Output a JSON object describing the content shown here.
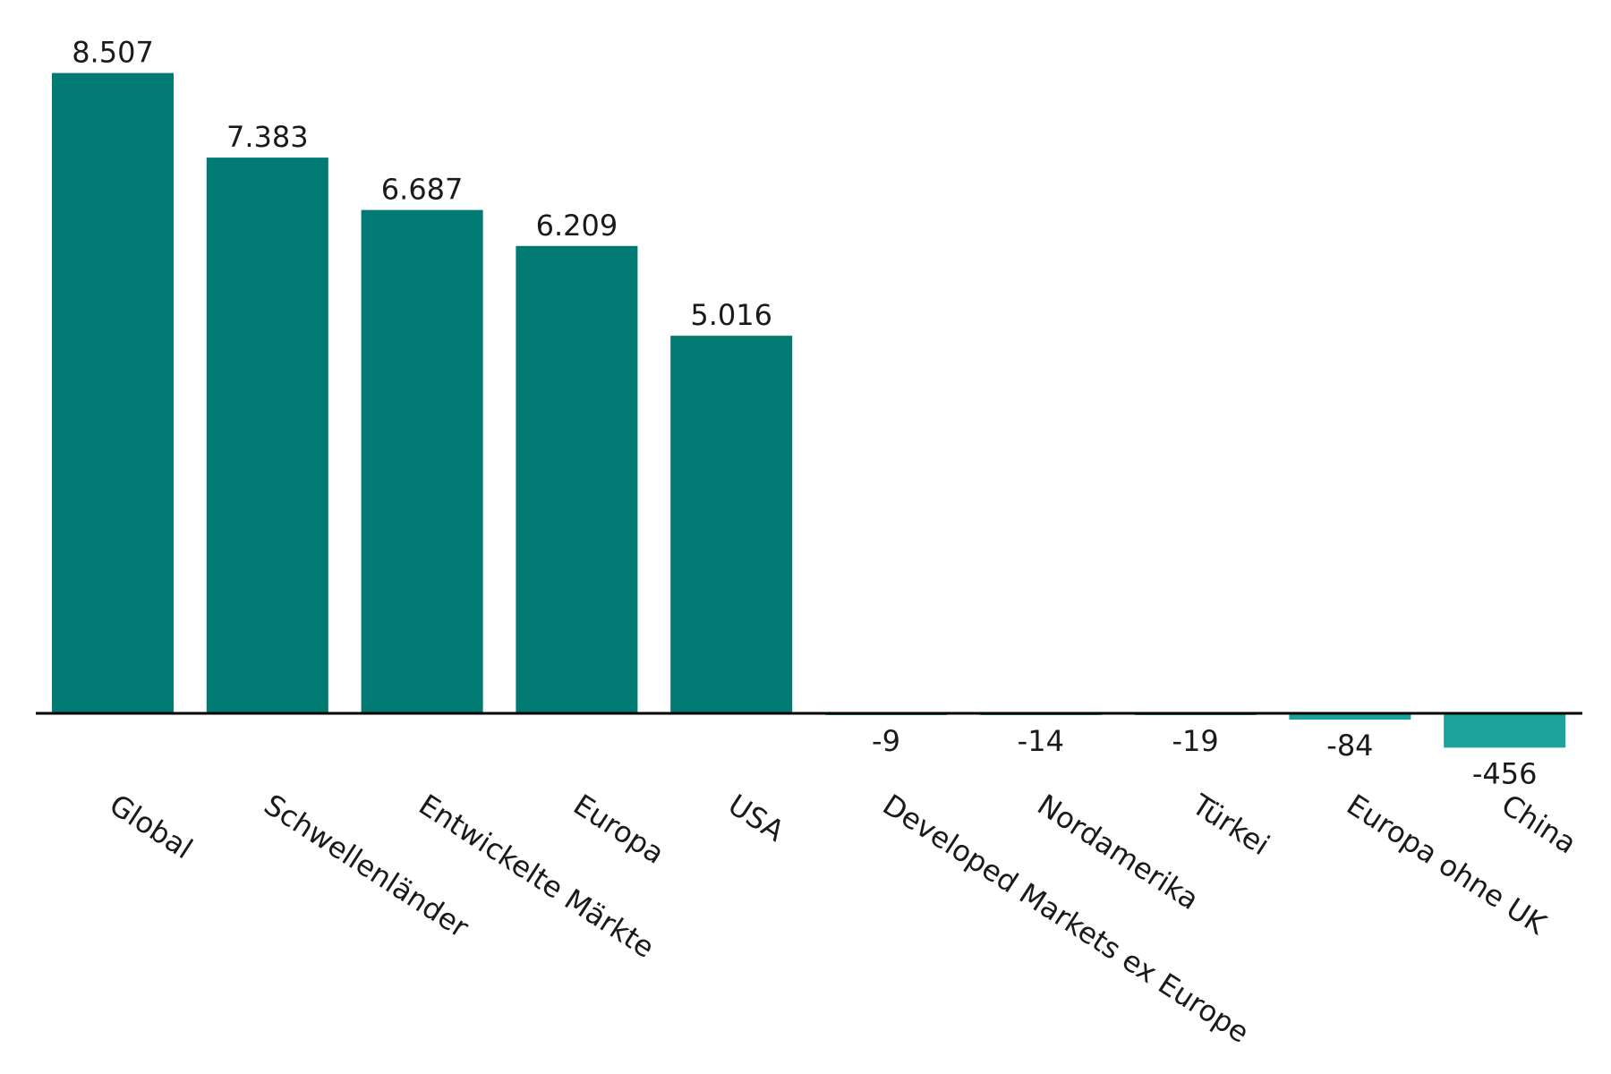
{
  "chart_data": {
    "type": "bar",
    "categories": [
      "Global",
      "Schwellenländer",
      "Entwickelte Märkte",
      "Europa",
      "USA",
      "Developed Markets ex Europe",
      "Nordamerika",
      "Türkei",
      "Europa ohne UK",
      "China"
    ],
    "values": [
      8507,
      7383,
      6687,
      6209,
      5016,
      -9,
      -14,
      -19,
      -84,
      -456
    ],
    "value_labels": [
      "8.507",
      "7.383",
      "6.687",
      "6.209",
      "5.016",
      "-9",
      "-14",
      "-19",
      "-84",
      "-456"
    ],
    "ylim": [
      -500,
      9000
    ],
    "grid": false,
    "legend": "none",
    "colors": {
      "positive": "#007A72",
      "negative": "#1BA39B",
      "axis": "#000000"
    }
  }
}
